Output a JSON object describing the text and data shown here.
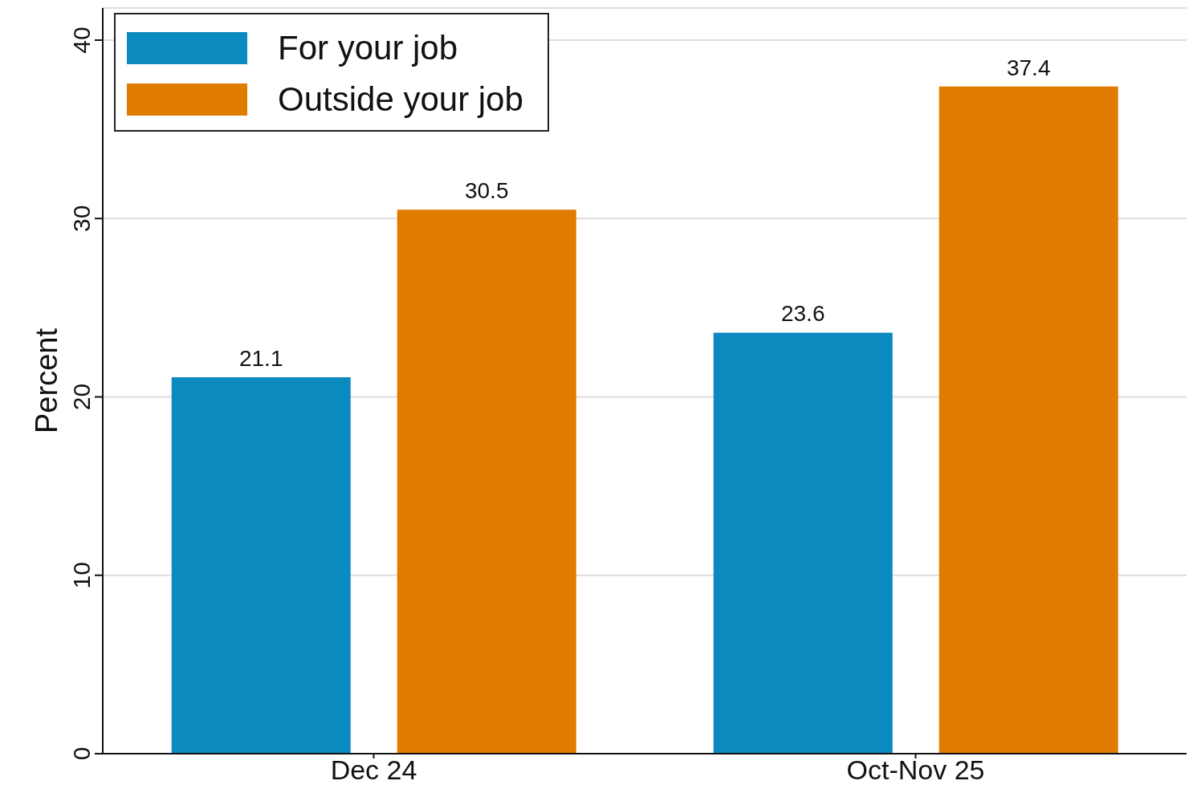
{
  "chart_data": {
    "type": "bar",
    "ylabel": "Percent",
    "categories": [
      "Dec 24",
      "Oct-Nov 25"
    ],
    "series": [
      {
        "name": "For your job",
        "color": "#0b8ac0",
        "values": [
          21.1,
          23.6
        ]
      },
      {
        "name": "Outside your job",
        "color": "#e07b00",
        "values": [
          30.5,
          37.4
        ]
      }
    ],
    "ylim": [
      0,
      41.8
    ],
    "yticks": [
      0,
      10,
      20,
      30,
      40
    ],
    "grid": "y",
    "legend": "top left",
    "data_labels": true
  }
}
